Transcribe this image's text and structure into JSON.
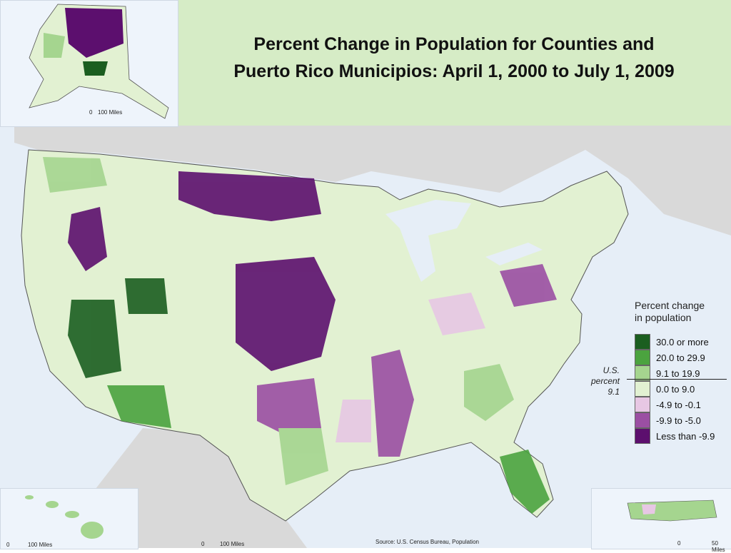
{
  "title": {
    "line1": "Percent Change in Population for Counties and",
    "line2": "Puerto Rico Municipios: April 1, 2000 to July 1, 2009"
  },
  "legend": {
    "title_line1": "Percent change",
    "title_line2": "in population",
    "items": [
      {
        "label": "30.0 or more",
        "color": "#1b5e20"
      },
      {
        "label": "20.0 to 29.9",
        "color": "#4ba33f"
      },
      {
        "label": "9.1 to 19.9",
        "color": "#a5d58f"
      },
      {
        "label": "0.0 to 9.0",
        "color": "#e2f1d2"
      },
      {
        "label": "-4.9 to -0.1",
        "color": "#e7c7e4"
      },
      {
        "label": "-9.9 to -5.0",
        "color": "#9b4fa3"
      },
      {
        "label": "Less than -9.9",
        "color": "#5c0f6e"
      }
    ],
    "us_note_line1": "U.S.",
    "us_note_line2": "percent",
    "us_note_line3": "9.1"
  },
  "scales": {
    "alaska_zero": "0",
    "alaska_miles": "100 Miles",
    "hawaii_zero": "0",
    "hawaii_miles": "100 Miles",
    "mainland_zero": "0",
    "mainland_miles": "100 Miles",
    "pr_zero": "0",
    "pr_miles": "50 Miles"
  },
  "source": "Source: U.S. Census Bureau, Population",
  "colors": {
    "title_band": "#d6ecc6",
    "water": "#e6eef7",
    "land_outside": "#d9d9d9"
  }
}
